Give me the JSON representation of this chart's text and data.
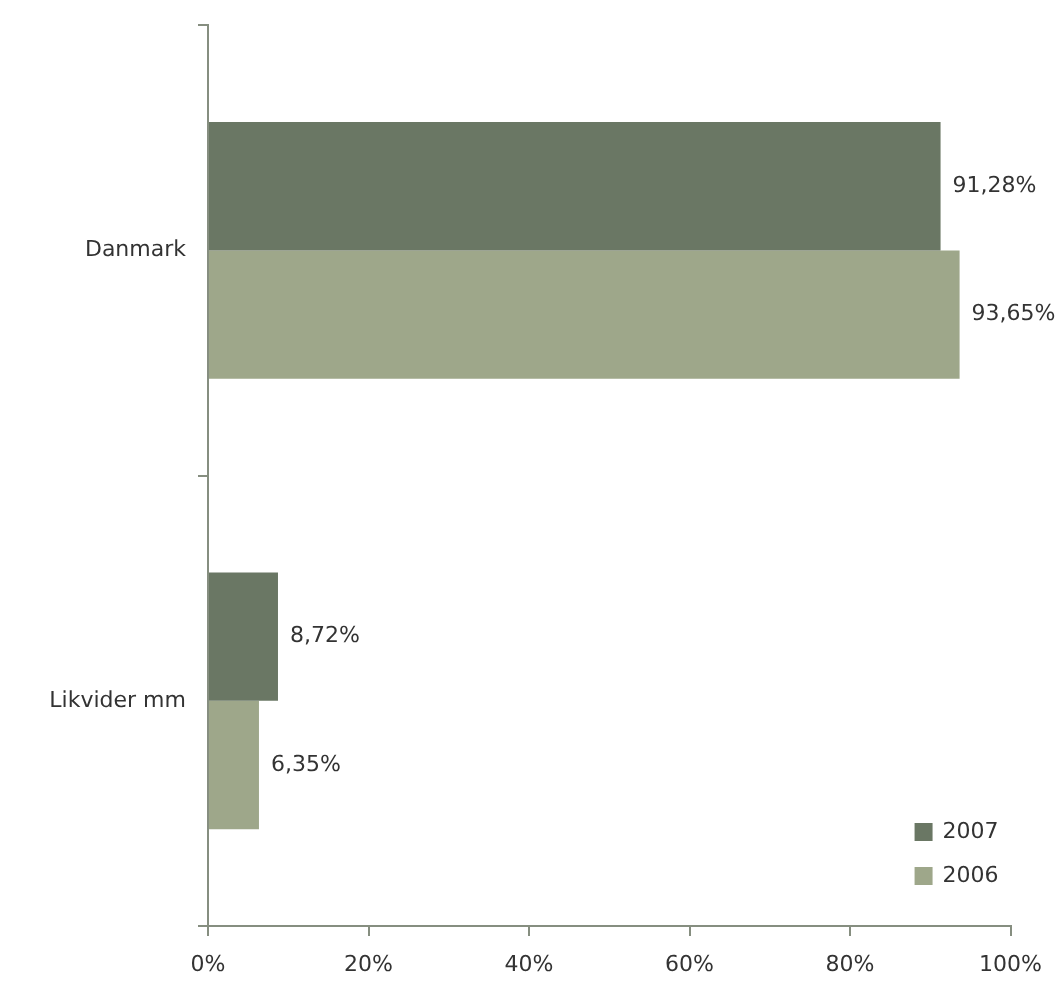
{
  "chart_data": {
    "type": "bar",
    "orientation": "horizontal",
    "categories": [
      "Danmark",
      "Likvider mm"
    ],
    "series": [
      {
        "name": "2007",
        "color": "#6a7764",
        "values": [
          91.28,
          8.72
        ],
        "value_labels": [
          "91,28%",
          "8,72%"
        ]
      },
      {
        "name": "2006",
        "color": "#9ea78a",
        "values": [
          93.65,
          6.35
        ],
        "value_labels": [
          "93,65%",
          "6,35%"
        ]
      }
    ],
    "xlim": [
      0,
      100
    ],
    "xticks": [
      {
        "value": 0,
        "label": "0%"
      },
      {
        "value": 20,
        "label": "20%"
      },
      {
        "value": 40,
        "label": "40%"
      },
      {
        "value": 60,
        "label": "60%"
      },
      {
        "value": 80,
        "label": "80%"
      },
      {
        "value": 100,
        "label": "100%"
      }
    ],
    "legend": "bottom right"
  }
}
